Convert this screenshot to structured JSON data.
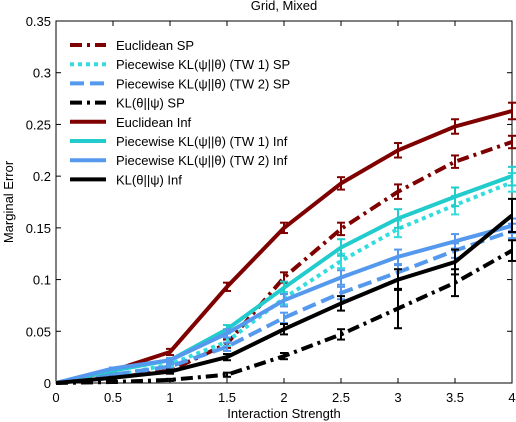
{
  "chart_data": {
    "type": "line",
    "title": "Grid, Mixed",
    "xlabel": "Interaction Strength",
    "ylabel": "Marginal Error",
    "xlim": [
      0,
      4
    ],
    "ylim": [
      0,
      0.35
    ],
    "x_ticks": [
      "0",
      "0.5",
      "1",
      "1.5",
      "2",
      "2.5",
      "3",
      "3.5",
      "4"
    ],
    "y_ticks": [
      "0",
      "0.05",
      "0.1",
      "0.15",
      "0.2",
      "0.25",
      "0.3",
      "0.35"
    ],
    "x_tick_values": [
      0,
      0.5,
      1,
      1.5,
      2,
      2.5,
      3,
      3.5,
      4
    ],
    "y_tick_values": [
      0,
      0.05,
      0.1,
      0.15,
      0.2,
      0.25,
      0.3,
      0.35
    ],
    "legend_position": "top-left",
    "grid": false,
    "x": [
      0,
      0.5,
      1,
      1.5,
      2,
      2.5,
      3,
      3.5,
      4
    ],
    "series": [
      {
        "name": "Euclidean SP",
        "color": "#7f0000",
        "style": "dashdot",
        "values": [
          0,
          0.005,
          0.012,
          0.038,
          0.102,
          0.149,
          0.185,
          0.214,
          0.233
        ],
        "errors": [
          0,
          0.001,
          0.002,
          0.004,
          0.005,
          0.006,
          0.007,
          0.006,
          0.006
        ]
      },
      {
        "name": "Piecewise KL(ψ||θ) (TW 1) SP",
        "color": "#33dddd",
        "style": "dotted",
        "values": [
          0,
          0.007,
          0.018,
          0.04,
          0.082,
          0.118,
          0.149,
          0.172,
          0.194
        ],
        "errors": [
          0,
          0.001,
          0.002,
          0.004,
          0.006,
          0.007,
          0.008,
          0.009,
          0.009
        ]
      },
      {
        "name": "Piecewise KL(ψ||θ) (TW 2) SP",
        "color": "#5599ee",
        "style": "dashed",
        "values": [
          0,
          0.008,
          0.016,
          0.035,
          0.063,
          0.087,
          0.107,
          0.128,
          0.147
        ],
        "errors": [
          0,
          0.001,
          0.002,
          0.004,
          0.005,
          0.006,
          0.007,
          0.007,
          0.007
        ]
      },
      {
        "name": "KL(θ||ψ) SP",
        "color": "#000000",
        "style": "dashdot",
        "values": [
          0,
          0.001,
          0.003,
          0.008,
          0.026,
          0.047,
          0.072,
          0.097,
          0.128
        ],
        "errors": [
          0,
          0.001,
          0.001,
          0.002,
          0.003,
          0.005,
          0.019,
          0.013,
          0.01
        ]
      },
      {
        "name": "Euclidean Inf",
        "color": "#7f0000",
        "style": "solid",
        "values": [
          0,
          0.012,
          0.03,
          0.093,
          0.15,
          0.193,
          0.225,
          0.248,
          0.263
        ],
        "errors": [
          0,
          0.001,
          0.003,
          0.004,
          0.005,
          0.006,
          0.007,
          0.007,
          0.008
        ]
      },
      {
        "name": "Piecewise KL(ψ||θ) (TW 1) Inf",
        "color": "#22cccc",
        "style": "solid",
        "values": [
          0,
          0.012,
          0.022,
          0.052,
          0.092,
          0.131,
          0.159,
          0.18,
          0.2
        ],
        "errors": [
          0,
          0.001,
          0.002,
          0.004,
          0.006,
          0.008,
          0.009,
          0.009,
          0.009
        ]
      },
      {
        "name": "Piecewise KL(ψ||θ) (TW 2) Inf",
        "color": "#5599ee",
        "style": "solid",
        "values": [
          0,
          0.014,
          0.022,
          0.048,
          0.08,
          0.102,
          0.122,
          0.137,
          0.152
        ],
        "errors": [
          0,
          0.001,
          0.002,
          0.004,
          0.006,
          0.007,
          0.007,
          0.007,
          0.007
        ]
      },
      {
        "name": "KL(θ||ψ) Inf",
        "color": "#000000",
        "style": "solid",
        "values": [
          0,
          0.005,
          0.011,
          0.025,
          0.052,
          0.077,
          0.1,
          0.117,
          0.162
        ],
        "errors": [
          0,
          0.001,
          0.002,
          0.003,
          0.005,
          0.007,
          0.01,
          0.012,
          0.016
        ]
      }
    ]
  }
}
